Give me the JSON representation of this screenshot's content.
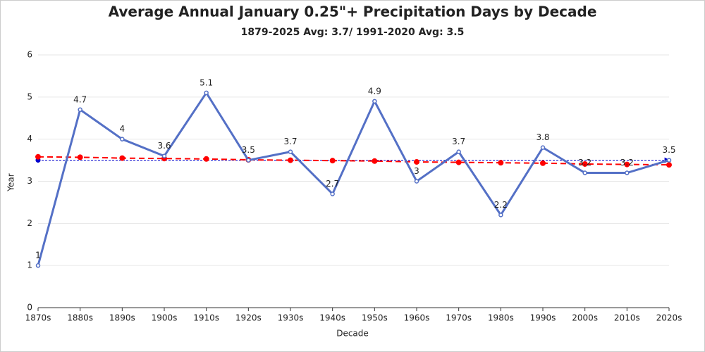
{
  "chart_data": {
    "type": "line",
    "title": "Average Annual January 0.25\"+ Precipitation Days by Decade",
    "subtitle": "1879-2025 Avg: 3.7/ 1991-2020 Avg: 3.5",
    "x_label": "Decade",
    "y_label": "Year",
    "categories": [
      "1870s",
      "1880s",
      "1890s",
      "1900s",
      "1910s",
      "1920s",
      "1930s",
      "1940s",
      "1950s",
      "1960s",
      "1970s",
      "1980s",
      "1990s",
      "2000s",
      "2010s",
      "2020s"
    ],
    "series": [
      {
        "color": "#5470c6",
        "values": [
          1,
          4.7,
          4,
          3.6,
          5.1,
          3.5,
          3.7,
          2.7,
          4.9,
          3,
          3.7,
          2.2,
          3.8,
          3.2,
          3.2,
          3.5
        ],
        "data_labels": true
      },
      {
        "color": "#ff0000",
        "style": "dashed",
        "values": [
          3.58,
          3.57,
          3.55,
          3.54,
          3.53,
          3.51,
          3.5,
          3.49,
          3.48,
          3.46,
          3.45,
          3.44,
          3.43,
          3.41,
          3.4,
          3.39
        ],
        "data_labels": false
      }
    ],
    "reference_line": {
      "value": 3.5,
      "color": "#0000cc"
    },
    "ylim": [
      0,
      6
    ],
    "yticks": [
      0,
      1,
      2,
      3,
      4,
      5,
      6
    ],
    "grid": true
  }
}
